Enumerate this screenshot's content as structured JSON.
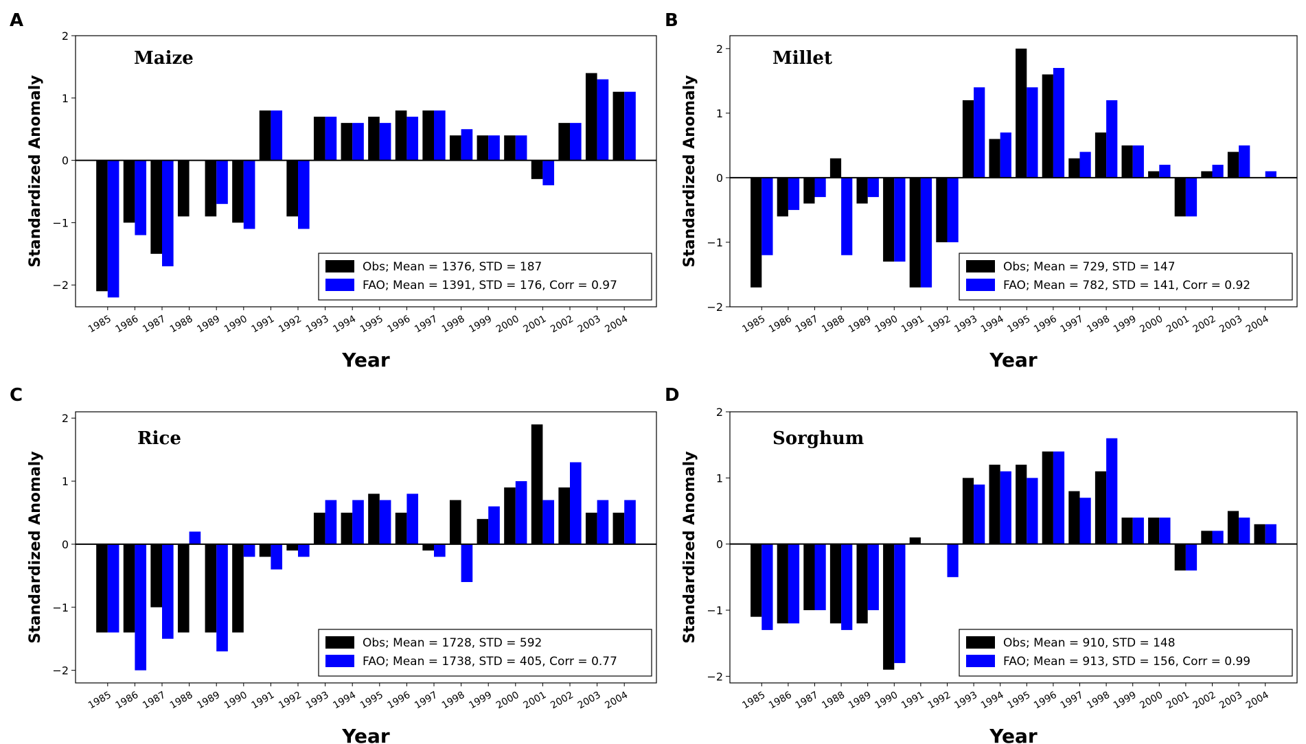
{
  "figure": {
    "x_label": "Year",
    "y_label": "Standardized Anomaly",
    "colors": {
      "obs": "#000000",
      "fao": "#0000ff"
    }
  },
  "chart_data": [
    {
      "panel": "A",
      "type": "bar",
      "title": "Maize",
      "xlabel": "Year",
      "ylabel": "Standardized Anomaly",
      "ylim": [
        -2.35,
        2
      ],
      "yticks": [
        -2,
        -1,
        0,
        1,
        2
      ],
      "legend_position": "bottom-right",
      "categories": [
        "1985",
        "1986",
        "1987",
        "1988",
        "1989",
        "1990",
        "1991",
        "1992",
        "1993",
        "1994",
        "1995",
        "1996",
        "1997",
        "1998",
        "1999",
        "2000",
        "2001",
        "2002",
        "2003",
        "2004"
      ],
      "series": [
        {
          "name": "Obs; Mean = 1376, STD = 187",
          "color": "#000000",
          "values": [
            -2.1,
            -1.0,
            -1.5,
            -0.9,
            -0.9,
            -1.0,
            0.8,
            -0.9,
            0.7,
            0.6,
            0.7,
            0.8,
            0.8,
            0.4,
            0.4,
            0.4,
            -0.3,
            0.6,
            1.4,
            1.1
          ]
        },
        {
          "name": "FAO; Mean = 1391, STD = 176, Corr = 0.97",
          "color": "#0000ff",
          "values": [
            -2.2,
            -1.2,
            -1.7,
            0.0,
            -0.7,
            -1.1,
            0.8,
            -1.1,
            0.7,
            0.6,
            0.6,
            0.7,
            0.8,
            0.5,
            0.4,
            0.4,
            -0.4,
            0.6,
            1.3,
            1.1
          ]
        }
      ]
    },
    {
      "panel": "B",
      "type": "bar",
      "title": "Millet",
      "xlabel": "Year",
      "ylabel": "Standardized Anomaly",
      "ylim": [
        -2,
        2.2
      ],
      "yticks": [
        -2,
        -1,
        0,
        1,
        2
      ],
      "legend_position": "bottom-right",
      "categories": [
        "1985",
        "1986",
        "1987",
        "1988",
        "1989",
        "1990",
        "1991",
        "1992",
        "1993",
        "1994",
        "1995",
        "1996",
        "1997",
        "1998",
        "1999",
        "2000",
        "2001",
        "2002",
        "2003",
        "2004"
      ],
      "series": [
        {
          "name": "Obs; Mean = 729, STD = 147",
          "color": "#000000",
          "values": [
            -1.7,
            -0.6,
            -0.4,
            0.3,
            -0.4,
            -1.3,
            -1.7,
            -1.0,
            1.2,
            0.6,
            2.0,
            1.6,
            0.3,
            0.7,
            0.5,
            0.1,
            -0.6,
            0.1,
            0.4,
            0.0
          ]
        },
        {
          "name": "FAO; Mean = 782, STD = 141, Corr = 0.92",
          "color": "#0000ff",
          "values": [
            -1.2,
            -0.5,
            -0.3,
            -1.2,
            -0.3,
            -1.3,
            -1.7,
            -1.0,
            1.4,
            0.7,
            1.4,
            1.7,
            0.4,
            1.2,
            0.5,
            0.2,
            -0.6,
            0.2,
            0.5,
            0.1
          ]
        }
      ]
    },
    {
      "panel": "C",
      "type": "bar",
      "title": "Rice",
      "xlabel": "Year",
      "ylabel": "Standardized Anomaly",
      "ylim": [
        -2.2,
        2.1
      ],
      "yticks": [
        -2,
        -1,
        0,
        1,
        2
      ],
      "legend_position": "bottom-right",
      "categories": [
        "1985",
        "1986",
        "1987",
        "1988",
        "1989",
        "1990",
        "1991",
        "1992",
        "1993",
        "1994",
        "1995",
        "1996",
        "1997",
        "1998",
        "1999",
        "2000",
        "2001",
        "2002",
        "2003",
        "2004"
      ],
      "series": [
        {
          "name": "Obs; Mean = 1728, STD = 592",
          "color": "#000000",
          "values": [
            -1.4,
            -1.4,
            -1.0,
            -1.4,
            -1.4,
            -1.4,
            -0.2,
            -0.1,
            0.5,
            0.5,
            0.8,
            0.5,
            -0.1,
            0.7,
            0.4,
            0.9,
            1.9,
            0.9,
            0.5,
            0.5
          ]
        },
        {
          "name": "FAO; Mean = 1738, STD = 405, Corr = 0.77",
          "color": "#0000ff",
          "values": [
            -1.4,
            -2.0,
            -1.5,
            0.2,
            -1.7,
            -0.2,
            -0.4,
            -0.2,
            0.7,
            0.7,
            0.7,
            0.8,
            -0.2,
            -0.6,
            0.6,
            1.0,
            0.7,
            1.3,
            0.7,
            0.7
          ]
        }
      ]
    },
    {
      "panel": "D",
      "type": "bar",
      "title": "Sorghum",
      "xlabel": "Year",
      "ylabel": "Standardized Anomaly",
      "ylim": [
        -2.1,
        2
      ],
      "yticks": [
        -2,
        -1,
        0,
        1,
        2
      ],
      "legend_position": "bottom-right",
      "categories": [
        "1985",
        "1986",
        "1987",
        "1988",
        "1989",
        "1990",
        "1991",
        "1992",
        "1993",
        "1994",
        "1995",
        "1996",
        "1997",
        "1998",
        "1999",
        "2000",
        "2001",
        "2002",
        "2003",
        "2004"
      ],
      "series": [
        {
          "name": "Obs; Mean = 910, STD = 148",
          "color": "#000000",
          "values": [
            -1.1,
            -1.2,
            -1.0,
            -1.2,
            -1.2,
            -1.9,
            0.1,
            0.0,
            1.0,
            1.2,
            1.2,
            1.4,
            0.8,
            1.1,
            0.4,
            0.4,
            -0.4,
            0.2,
            0.5,
            0.3
          ]
        },
        {
          "name": "FAO; Mean = 913, STD = 156, Corr = 0.99",
          "color": "#0000ff",
          "values": [
            -1.3,
            -1.2,
            -1.0,
            -1.3,
            -1.0,
            -1.8,
            0.0,
            -0.5,
            0.9,
            1.1,
            1.0,
            1.4,
            0.7,
            1.6,
            0.4,
            0.4,
            -0.4,
            0.2,
            0.4,
            0.3
          ]
        }
      ]
    }
  ]
}
